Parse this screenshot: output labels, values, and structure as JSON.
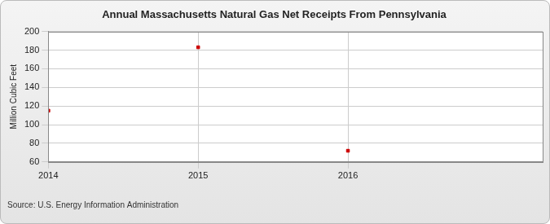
{
  "chart_data": {
    "type": "scatter",
    "title": "Annual Massachusetts Natural Gas Net Receipts From Pennsylvania",
    "y_label": "Million Cubic Feet",
    "source": "Source: U.S. Energy Information Administration",
    "x": [
      2014,
      2015,
      2016
    ],
    "values": [
      115,
      183,
      72
    ],
    "color": "#cc0000",
    "marker": "square",
    "xlim": [
      2014,
      2017.3
    ],
    "xticks": [
      2014,
      2015,
      2016
    ],
    "ylim": [
      60,
      200
    ],
    "yticks": [
      60,
      80,
      100,
      120,
      140,
      160,
      180,
      200
    ],
    "grid": true
  }
}
